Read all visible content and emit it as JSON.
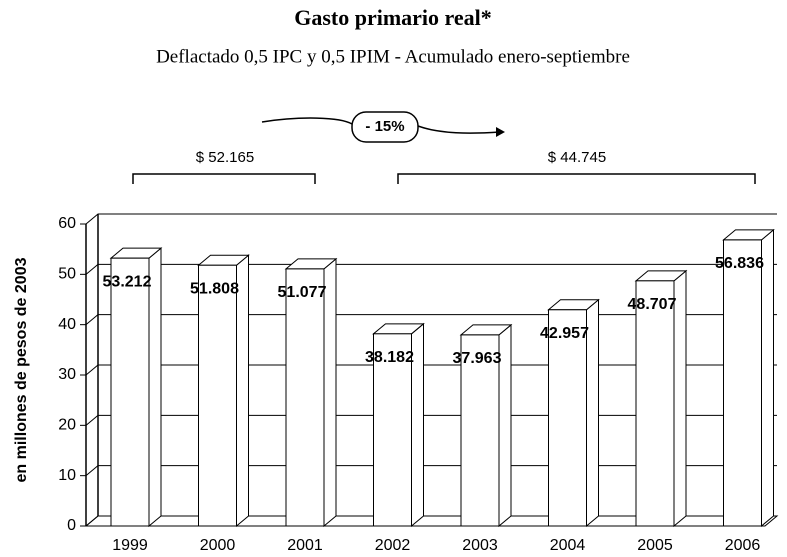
{
  "chart_data": {
    "type": "bar",
    "title": "Gasto primario real*",
    "subtitle": "Deflactado 0,5 IPC y 0,5 IPIM - Acumulado enero-septiembre",
    "ylabel": "en millones de pesos de 2003",
    "categories": [
      "1999",
      "2000",
      "2001",
      "2002",
      "2003",
      "2004",
      "2005",
      "2006"
    ],
    "values": [
      53.212,
      51.808,
      51.077,
      38.182,
      37.963,
      42.957,
      48.707,
      56.836
    ],
    "color": "#ffffff",
    "ylim": [
      0,
      60
    ],
    "yticks": [
      0,
      10,
      20,
      30,
      40,
      50,
      60
    ],
    "grid": true,
    "annotations": {
      "change": "- 15%",
      "period1": "$ 52.165",
      "period2": "$ 44.745"
    }
  }
}
